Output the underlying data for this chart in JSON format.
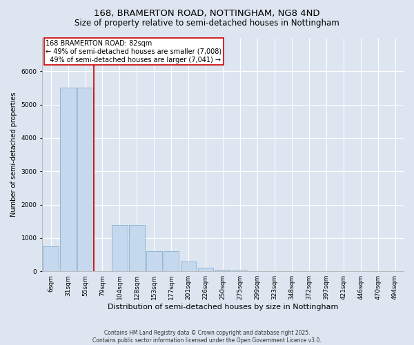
{
  "title1": "168, BRAMERTON ROAD, NOTTINGHAM, NG8 4ND",
  "title2": "Size of property relative to semi-detached houses in Nottingham",
  "xlabel": "Distribution of semi-detached houses by size in Nottingham",
  "ylabel": "Number of semi-detached properties",
  "categories": [
    "6sqm",
    "31sqm",
    "55sqm",
    "79sqm",
    "104sqm",
    "128sqm",
    "153sqm",
    "177sqm",
    "201sqm",
    "226sqm",
    "250sqm",
    "275sqm",
    "299sqm",
    "323sqm",
    "348sqm",
    "372sqm",
    "397sqm",
    "421sqm",
    "446sqm",
    "470sqm",
    "494sqm"
  ],
  "values": [
    750,
    5500,
    5500,
    5,
    1400,
    1400,
    600,
    600,
    300,
    100,
    50,
    20,
    10,
    5,
    3,
    2,
    2,
    1,
    1,
    1,
    1
  ],
  "bar_color": "#c5d8ed",
  "bar_edge_color": "#7aa8cc",
  "vline_pos": 2.5,
  "vline_color": "#cc0000",
  "property_size": "82sqm",
  "property_name": "168 BRAMERTON ROAD",
  "pct_smaller": 49,
  "count_smaller": 7008,
  "pct_larger": 49,
  "count_larger": 7041,
  "ylim": [
    0,
    7000
  ],
  "yticks": [
    0,
    1000,
    2000,
    3000,
    4000,
    5000,
    6000
  ],
  "background_color": "#dde5f0",
  "plot_bg_color": "#dde5f0",
  "grid_color": "#ffffff",
  "footnote": "Contains HM Land Registry data © Crown copyright and database right 2025.\nContains public sector information licensed under the Open Government Licence v3.0.",
  "title1_fontsize": 9.5,
  "title2_fontsize": 8.5,
  "xlabel_fontsize": 8,
  "ylabel_fontsize": 7,
  "tick_fontsize": 6.5,
  "annotation_fontsize": 7,
  "footnote_fontsize": 5.5
}
